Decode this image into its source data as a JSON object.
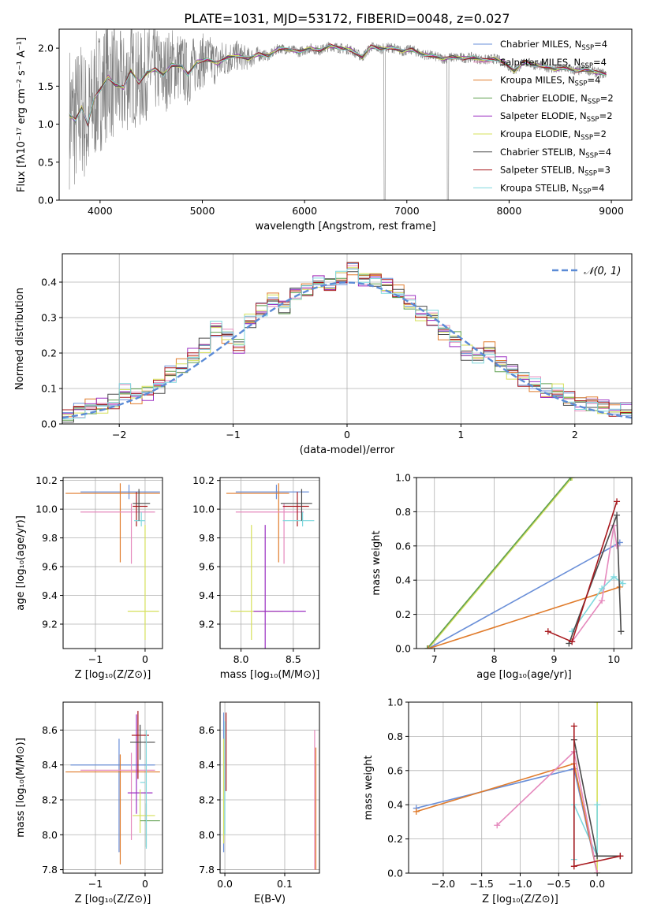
{
  "figure_title": "PLATE=1031, MJD=53172, FIBERID=0048, z=0.027",
  "legend_entries": [
    {
      "label": "Chabrier MILES, N",
      "sub": "SSP",
      "tail": "=4",
      "color": "#6a8fd8"
    },
    {
      "label": "Salpeter MILES, N",
      "sub": "SSP",
      "tail": "=4",
      "color": "#e589bd"
    },
    {
      "label": "Kroupa MILES, N",
      "sub": "SSP",
      "tail": "=4",
      "color": "#e07b2b"
    },
    {
      "label": "Chabrier ELODIE, N",
      "sub": "SSP",
      "tail": "=2",
      "color": "#5f9f4f"
    },
    {
      "label": "Salpeter ELODIE, N",
      "sub": "SSP",
      "tail": "=2",
      "color": "#9b2fc2"
    },
    {
      "label": "Kroupa ELODIE, N",
      "sub": "SSP",
      "tail": "=2",
      "color": "#d6e05a"
    },
    {
      "label": "Chabrier STELIB, N",
      "sub": "SSP",
      "tail": "=4",
      "color": "#4a4a4a"
    },
    {
      "label": "Salpeter STELIB, N",
      "sub": "SSP",
      "tail": "=3",
      "color": "#a8191e"
    },
    {
      "label": "Kroupa STELIB, N",
      "sub": "SSP",
      "tail": "=4",
      "color": "#7fd8de"
    }
  ],
  "chart_data": [
    {
      "id": "spectrum",
      "type": "line",
      "xlabel": "wavelength [Angstrom, rest frame]",
      "ylabel": "Flux [fλ10⁻¹⁷ erg cm⁻² s⁻¹ A⁻¹]",
      "xlim": [
        3600,
        9200
      ],
      "ylim": [
        0,
        2.25
      ],
      "xticks": [
        4000,
        5000,
        6000,
        7000,
        8000,
        9000
      ],
      "yticks": [
        0.0,
        0.5,
        1.0,
        1.5,
        2.0
      ],
      "data_color": "#808080",
      "model_x": [
        3700,
        3760,
        3820,
        3880,
        3940,
        4000,
        4080,
        4150,
        4230,
        4300,
        4380,
        4460,
        4540,
        4620,
        4700,
        4800,
        4860,
        4950,
        5050,
        5150,
        5250,
        5350,
        5450,
        5550,
        5650,
        5750,
        5850,
        5950,
        6050,
        6150,
        6250,
        6350,
        6450,
        6563,
        6650,
        6750,
        6850,
        6950,
        7050,
        7150,
        7250,
        7350,
        7450,
        7550,
        7650,
        7750,
        7850,
        7950,
        8050,
        8150,
        8250,
        8350,
        8450,
        8550,
        8650,
        8750,
        8850,
        8950
      ],
      "model_y": [
        1.12,
        1.05,
        1.22,
        1.0,
        1.33,
        1.45,
        1.62,
        1.52,
        1.48,
        1.7,
        1.55,
        1.68,
        1.72,
        1.65,
        1.78,
        1.76,
        1.65,
        1.82,
        1.85,
        1.8,
        1.88,
        1.9,
        1.86,
        1.92,
        1.9,
        2.0,
        1.98,
        1.95,
        2.0,
        1.97,
        2.03,
        2.0,
        1.98,
        1.88,
        2.02,
        1.99,
        2.01,
        1.96,
        1.98,
        1.92,
        1.9,
        1.86,
        1.88,
        1.87,
        1.88,
        1.84,
        1.86,
        1.82,
        1.7,
        1.82,
        1.78,
        1.76,
        1.72,
        1.74,
        1.7,
        1.72,
        1.68,
        1.66
      ]
    },
    {
      "id": "residuals",
      "type": "histogram",
      "xlabel": "(data-model)/error",
      "ylabel": "Normed distribution",
      "xlim": [
        -2.5,
        2.5
      ],
      "ylim": [
        0,
        0.48
      ],
      "xticks": [
        -2,
        -1,
        0,
        1,
        2
      ],
      "yticks": [
        0.0,
        0.1,
        0.2,
        0.3,
        0.4
      ],
      "grid": true,
      "legend": {
        "label": "𝒩(0, 1)",
        "position": "top-right",
        "style": "dashed",
        "color": "#5b8bd6"
      },
      "bin_edges": [
        -2.5,
        -2.4,
        -2.3,
        -2.2,
        -2.1,
        -2.0,
        -1.9,
        -1.8,
        -1.7,
        -1.6,
        -1.5,
        -1.4,
        -1.3,
        -1.2,
        -1.1,
        -1.0,
        -0.9,
        -0.8,
        -0.7,
        -0.6,
        -0.5,
        -0.4,
        -0.3,
        -0.2,
        -0.1,
        0.0,
        0.1,
        0.2,
        0.3,
        0.4,
        0.5,
        0.6,
        0.7,
        0.8,
        0.9,
        1.0,
        1.1,
        1.2,
        1.3,
        1.4,
        1.5,
        1.6,
        1.7,
        1.8,
        1.9,
        2.0,
        2.1,
        2.2,
        2.3,
        2.4,
        2.5
      ],
      "counts": [
        0.02,
        0.04,
        0.05,
        0.05,
        0.06,
        0.09,
        0.08,
        0.09,
        0.11,
        0.14,
        0.16,
        0.19,
        0.22,
        0.27,
        0.25,
        0.22,
        0.29,
        0.32,
        0.35,
        0.33,
        0.37,
        0.38,
        0.4,
        0.39,
        0.41,
        0.44,
        0.41,
        0.41,
        0.39,
        0.37,
        0.34,
        0.31,
        0.3,
        0.26,
        0.24,
        0.2,
        0.19,
        0.21,
        0.17,
        0.15,
        0.13,
        0.11,
        0.09,
        0.09,
        0.07,
        0.06,
        0.06,
        0.05,
        0.04,
        0.04
      ]
    },
    {
      "id": "age_vs_Z",
      "type": "scatter",
      "xlabel": "Z [log₁₀(Z/Z⊙)]",
      "ylabel": "age  [log₁₀(age/yr)]",
      "xlim": [
        -1.65,
        0.35
      ],
      "ylim": [
        9.03,
        10.22
      ],
      "xticks": [
        -1,
        0
      ],
      "yticks": [
        9.2,
        9.4,
        9.6,
        9.8,
        10.0,
        10.2
      ],
      "grid": true,
      "points": [
        {
          "x": -0.3,
          "xerr": [
            1.0,
            0.6
          ],
          "y": 10.12,
          "yerr": [
            0.05,
            0.05
          ],
          "color": "#6a8fd8"
        },
        {
          "x": -0.5,
          "xerr": [
            1.1,
            0.8
          ],
          "y": 10.11,
          "yerr": [
            0.48,
            0.07
          ],
          "color": "#e07b2b"
        },
        {
          "x": -0.3,
          "xerr": [
            1.0,
            0.5
          ],
          "y": 9.98,
          "yerr": [
            0.36,
            0.06
          ],
          "color": "#e589bd"
        },
        {
          "x": -0.15,
          "xerr": [
            0.1,
            0.2
          ],
          "y": 10.02,
          "yerr": [
            0.14,
            0.1
          ],
          "color": "#a8191e"
        },
        {
          "x": 0.0,
          "xerr": [
            0.35,
            0.28
          ],
          "y": 9.29,
          "yerr": [
            0.2,
            0.6
          ],
          "color": "#d6e05a"
        },
        {
          "x": -0.1,
          "xerr": [
            0.12,
            0.1
          ],
          "y": 9.92,
          "yerr": [
            0.04,
            0.06
          ],
          "color": "#7fd8de"
        },
        {
          "x": -0.1,
          "xerr": [
            0.15,
            0.2
          ],
          "y": 10.04,
          "yerr": [
            0.12,
            0.1
          ],
          "color": "#4a4a4a"
        }
      ]
    },
    {
      "id": "age_vs_mass",
      "type": "scatter",
      "xlabel": "mass [log₁₀(M/M⊙)]",
      "ylabel": "",
      "xlim": [
        7.8,
        8.75
      ],
      "ylim": [
        9.03,
        10.22
      ],
      "xticks": [
        8.0,
        8.5
      ],
      "yticks": [
        9.2,
        9.4,
        9.6,
        9.8,
        10.0,
        10.2
      ],
      "grid": true,
      "points": [
        {
          "x": 8.35,
          "xerr": [
            0.4,
            0.3
          ],
          "y": 10.12,
          "yerr": [
            0.05,
            0.05
          ],
          "color": "#6a8fd8"
        },
        {
          "x": 8.36,
          "xerr": [
            0.5,
            0.1
          ],
          "y": 10.11,
          "yerr": [
            0.48,
            0.07
          ],
          "color": "#e07b2b"
        },
        {
          "x": 8.4,
          "xerr": [
            0.45,
            0.2
          ],
          "y": 9.98,
          "yerr": [
            0.36,
            0.06
          ],
          "color": "#e589bd"
        },
        {
          "x": 8.55,
          "xerr": [
            0.15,
            0.1
          ],
          "y": 10.02,
          "yerr": [
            0.14,
            0.1
          ],
          "color": "#a8191e"
        },
        {
          "x": 8.1,
          "xerr": [
            0.2,
            0.3
          ],
          "y": 9.29,
          "yerr": [
            0.2,
            0.6
          ],
          "color": "#d6e05a"
        },
        {
          "x": 8.22,
          "xerr": [
            0.1,
            0.4
          ],
          "y": 9.29,
          "yerr": [
            0.3,
            0.6
          ],
          "color": "#9b2fc2"
        },
        {
          "x": 8.6,
          "xerr": [
            0.2,
            0.1
          ],
          "y": 9.92,
          "yerr": [
            0.04,
            0.06
          ],
          "color": "#7fd8de"
        },
        {
          "x": 8.58,
          "xerr": [
            0.2,
            0.1
          ],
          "y": 10.04,
          "yerr": [
            0.12,
            0.1
          ],
          "color": "#4a4a4a"
        }
      ]
    },
    {
      "id": "weight_vs_age",
      "type": "line",
      "xlabel": "age  [log₁₀(age/yr)]",
      "ylabel": "mass weight",
      "xlim": [
        6.7,
        10.3
      ],
      "ylim": [
        0,
        1.0
      ],
      "xticks": [
        7,
        8,
        9,
        10
      ],
      "yticks": [
        0.0,
        0.2,
        0.4,
        0.6,
        0.8,
        1.0
      ],
      "grid": true,
      "series": [
        {
          "color": "#d6e05a",
          "points": [
            [
              6.9,
              0.0
            ],
            [
              9.3,
              1.0
            ]
          ]
        },
        {
          "color": "#5f9f4f",
          "points": [
            [
              6.88,
              0.0
            ],
            [
              9.28,
              1.0
            ]
          ]
        },
        {
          "color": "#6a8fd8",
          "points": [
            [
              6.9,
              0.0
            ],
            [
              10.1,
              0.62
            ]
          ]
        },
        {
          "color": "#e07b2b",
          "points": [
            [
              6.9,
              0.0
            ],
            [
              10.1,
              0.36
            ]
          ]
        },
        {
          "color": "#e589bd",
          "points": [
            [
              9.3,
              0.04
            ],
            [
              9.8,
              0.28
            ],
            [
              10.0,
              0.72
            ],
            [
              10.05,
              0.6
            ]
          ]
        },
        {
          "color": "#7fd8de",
          "points": [
            [
              9.3,
              0.1
            ],
            [
              9.8,
              0.35
            ],
            [
              10.0,
              0.42
            ],
            [
              10.15,
              0.38
            ]
          ]
        },
        {
          "color": "#4a4a4a",
          "points": [
            [
              9.25,
              0.03
            ],
            [
              10.05,
              0.78
            ],
            [
              10.12,
              0.1
            ]
          ]
        },
        {
          "color": "#a8191e",
          "points": [
            [
              8.9,
              0.1
            ],
            [
              9.3,
              0.04
            ],
            [
              10.05,
              0.86
            ]
          ]
        }
      ]
    },
    {
      "id": "mass_vs_Z",
      "type": "scatter",
      "xlabel": "Z [log₁₀(Z/Z⊙)]",
      "ylabel": "mass [log₁₀(M/M⊙)]",
      "xlim": [
        -1.65,
        0.35
      ],
      "ylim": [
        7.78,
        8.76
      ],
      "xticks": [
        -1,
        0
      ],
      "yticks": [
        7.8,
        8.0,
        8.2,
        8.4,
        8.6
      ],
      "grid": true,
      "points": [
        {
          "x": -0.5,
          "xerr": [
            1.0,
            0.7
          ],
          "y": 8.4,
          "yerr": [
            0.5,
            0.15
          ],
          "color": "#6a8fd8"
        },
        {
          "x": -0.5,
          "xerr": [
            1.1,
            0.8
          ],
          "y": 8.36,
          "yerr": [
            0.53,
            0.1
          ],
          "color": "#e07b2b"
        },
        {
          "x": -0.3,
          "xerr": [
            1.0,
            0.5
          ],
          "y": 8.37,
          "yerr": [
            0.4,
            0.1
          ],
          "color": "#e589bd"
        },
        {
          "x": -0.15,
          "xerr": [
            0.2,
            0.3
          ],
          "y": 8.24,
          "yerr": [
            0.12,
            0.45
          ],
          "color": "#9b2fc2"
        },
        {
          "x": -0.1,
          "xerr": [
            0.15,
            0.3
          ],
          "y": 8.11,
          "yerr": [
            0.1,
            0.15
          ],
          "color": "#d6e05a"
        },
        {
          "x": 0.0,
          "xerr": [
            0.1,
            0.3
          ],
          "y": 8.08,
          "yerr": [
            0.15,
            0.1
          ],
          "color": "#5f9f4f"
        },
        {
          "x": -0.12,
          "xerr": [
            0.15,
            0.2
          ],
          "y": 8.57,
          "yerr": [
            0.25,
            0.14
          ],
          "color": "#a8191e"
        },
        {
          "x": -0.1,
          "xerr": [
            0.2,
            0.3
          ],
          "y": 8.53,
          "yerr": [
            0.1,
            0.1
          ],
          "color": "#4a4a4a"
        },
        {
          "x": 0.0,
          "xerr": [
            0.1,
            0.0
          ],
          "y": 8.3,
          "yerr": [
            0.38,
            0.3
          ],
          "color": "#7fd8de"
        }
      ]
    },
    {
      "id": "mass_vs_ebv",
      "type": "scatter",
      "xlabel": "E(B-V)",
      "ylabel": "",
      "xlim": [
        -0.008,
        0.158
      ],
      "ylim": [
        7.78,
        8.76
      ],
      "xticks": [
        0.0,
        0.1
      ],
      "yticks": [
        7.8,
        8.0,
        8.2,
        8.4,
        8.6
      ],
      "grid": true,
      "points": [
        {
          "x": 0.0,
          "y": 8.3,
          "yerr": [
            0.4,
            0.4
          ],
          "color": "#6a8fd8"
        },
        {
          "x": 0.0,
          "y": 8.35,
          "yerr": [
            0.35,
            0.3
          ],
          "color": "#7fd8de"
        },
        {
          "x": 0.0,
          "y": 8.45,
          "yerr": [
            0.2,
            0.25
          ],
          "color": "#a8191e"
        },
        {
          "x": 0.0,
          "y": 8.25,
          "yerr": [
            0.3,
            0.3
          ],
          "color": "#d6e05a"
        },
        {
          "x": 0.15,
          "y": 8.35,
          "yerr": [
            0.55,
            0.25
          ],
          "color": "#e589bd"
        },
        {
          "x": 0.15,
          "y": 8.2,
          "yerr": [
            0.4,
            0.3
          ],
          "color": "#e07b2b"
        }
      ]
    },
    {
      "id": "weight_vs_Z",
      "type": "line",
      "xlabel": "Z [log₁₀(Z/Z⊙)]",
      "ylabel": "mass weight",
      "xlim": [
        -2.45,
        0.45
      ],
      "ylim": [
        0,
        1.0
      ],
      "xticks": [
        -2.0,
        -1.5,
        -1.0,
        -0.5,
        0.0
      ],
      "yticks": [
        0.0,
        0.2,
        0.4,
        0.6,
        0.8,
        1.0
      ],
      "grid": true,
      "series": [
        {
          "color": "#d6e05a",
          "points": [
            [
              0.0,
              1.0
            ],
            [
              0.0,
              0.0
            ]
          ]
        },
        {
          "color": "#7fd8de",
          "points": [
            [
              -0.3,
              0.08
            ],
            [
              -0.3,
              0.4
            ],
            [
              0.0,
              0.1
            ],
            [
              0.0,
              0.4
            ]
          ]
        },
        {
          "color": "#6a8fd8",
          "points": [
            [
              -2.35,
              0.38
            ],
            [
              -0.3,
              0.61
            ],
            [
              0.0,
              0.0
            ]
          ]
        },
        {
          "color": "#e07b2b",
          "points": [
            [
              -2.35,
              0.36
            ],
            [
              -0.3,
              0.64
            ],
            [
              0.0,
              0.0
            ]
          ]
        },
        {
          "color": "#e589bd",
          "points": [
            [
              -1.3,
              0.28
            ],
            [
              -0.3,
              0.71
            ],
            [
              0.0,
              0.0
            ]
          ]
        },
        {
          "color": "#4a4a4a",
          "points": [
            [
              -0.3,
              0.78
            ],
            [
              0.0,
              0.1
            ],
            [
              0.3,
              0.1
            ]
          ]
        },
        {
          "color": "#a8191e",
          "points": [
            [
              -0.3,
              0.86
            ],
            [
              -0.3,
              0.04
            ],
            [
              0.3,
              0.1
            ]
          ]
        }
      ]
    }
  ]
}
